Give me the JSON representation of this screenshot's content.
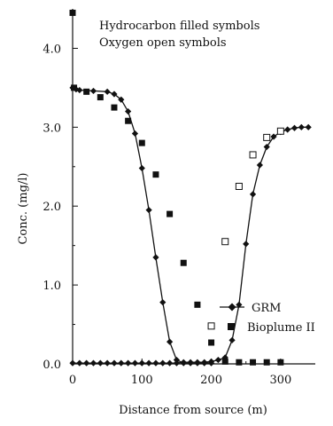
{
  "chart_data": {
    "type": "line",
    "title": "",
    "xlabel": "Distance from source (m)",
    "ylabel": "Conc. (mg/l)",
    "annotations": [
      "Hydrocarbon filled symbols",
      "Oxygen open symbols"
    ],
    "xlim": [
      0,
      350
    ],
    "ylim": [
      0,
      4.5
    ],
    "x_ticks": [
      "0",
      "100",
      "200",
      "300"
    ],
    "y_ticks": [
      "0.0",
      "1.0",
      "2.0",
      "3.0",
      "4.0"
    ],
    "x_tick_values": [
      0,
      100,
      200,
      300
    ],
    "y_tick_values": [
      0,
      1,
      2,
      3,
      4
    ],
    "grid": false,
    "legend": "right",
    "series": [
      {
        "name": "GRM",
        "role": "hydrocarbon",
        "style": "line-diamond-filled",
        "x": [
          0,
          5,
          10,
          30,
          50,
          60,
          70,
          80,
          90,
          100,
          110,
          120,
          130,
          140,
          150,
          160,
          170,
          180,
          190,
          200
        ],
        "y": [
          3.5,
          3.48,
          3.47,
          3.46,
          3.45,
          3.42,
          3.35,
          3.2,
          2.92,
          2.48,
          1.95,
          1.35,
          0.78,
          0.28,
          0.05,
          0.01,
          0.01,
          0.01,
          0.01,
          0.01
        ]
      },
      {
        "name": "GRM",
        "role": "oxygen",
        "style": "line-diamond-filled",
        "x": [
          0,
          10,
          20,
          30,
          40,
          50,
          60,
          70,
          80,
          90,
          100,
          110,
          120,
          130,
          140,
          150,
          160,
          170,
          180,
          190,
          200,
          210,
          220,
          230,
          240,
          250,
          260,
          270,
          280,
          290,
          300,
          310,
          320,
          330,
          340
        ],
        "y": [
          0.01,
          0.01,
          0.01,
          0.01,
          0.01,
          0.01,
          0.01,
          0.01,
          0.01,
          0.01,
          0.01,
          0.01,
          0.01,
          0.01,
          0.01,
          0.01,
          0.02,
          0.02,
          0.02,
          0.02,
          0.03,
          0.05,
          0.08,
          0.3,
          0.75,
          1.52,
          2.15,
          2.52,
          2.75,
          2.88,
          2.94,
          2.97,
          2.99,
          3.0,
          3.0
        ]
      },
      {
        "name": "Bioplume II",
        "role": "hydrocarbon",
        "style": "marker-square-filled",
        "x": [
          0,
          2,
          20,
          40,
          60,
          80,
          100,
          120,
          140,
          160,
          180,
          200,
          220,
          240,
          260,
          280,
          300
        ],
        "y": [
          4.45,
          3.5,
          3.45,
          3.38,
          3.25,
          3.08,
          2.8,
          2.4,
          1.9,
          1.28,
          0.75,
          0.27,
          0.03,
          0.02,
          0.02,
          0.02,
          0.02
        ]
      },
      {
        "name": "Bioplume II",
        "role": "oxygen",
        "style": "marker-square-open",
        "x": [
          200,
          220,
          240,
          260,
          280,
          300
        ],
        "y": [
          0.48,
          1.55,
          2.25,
          2.65,
          2.87,
          2.95
        ]
      }
    ]
  },
  "colors": {
    "ink": "#111111",
    "background": "#ffffff"
  }
}
